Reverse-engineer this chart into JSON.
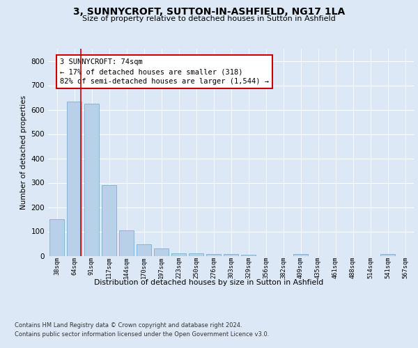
{
  "title": "3, SUNNYCROFT, SUTTON-IN-ASHFIELD, NG17 1LA",
  "subtitle": "Size of property relative to detached houses in Sutton in Ashfield",
  "xlabel": "Distribution of detached houses by size in Sutton in Ashfield",
  "ylabel": "Number of detached properties",
  "categories": [
    "38sqm",
    "64sqm",
    "91sqm",
    "117sqm",
    "144sqm",
    "170sqm",
    "197sqm",
    "223sqm",
    "250sqm",
    "276sqm",
    "303sqm",
    "329sqm",
    "356sqm",
    "382sqm",
    "409sqm",
    "435sqm",
    "461sqm",
    "488sqm",
    "514sqm",
    "541sqm",
    "567sqm"
  ],
  "values": [
    150,
    632,
    625,
    290,
    103,
    47,
    30,
    11,
    9,
    7,
    7,
    5,
    0,
    0,
    7,
    0,
    0,
    0,
    0,
    7,
    0
  ],
  "bar_color": "#b8d0e8",
  "bar_edge_color": "#7aaed4",
  "marker_line_color": "#cc0000",
  "annotation_text": "3 SUNNYCROFT: 74sqm\n← 17% of detached houses are smaller (318)\n82% of semi-detached houses are larger (1,544) →",
  "annotation_box_color": "#ffffff",
  "annotation_box_edge_color": "#cc0000",
  "ylim": [
    0,
    850
  ],
  "yticks": [
    0,
    100,
    200,
    300,
    400,
    500,
    600,
    700,
    800
  ],
  "bg_color": "#dce8f5",
  "plot_bg_color": "#dce8f5",
  "footer_line1": "Contains HM Land Registry data © Crown copyright and database right 2024.",
  "footer_line2": "Contains public sector information licensed under the Open Government Licence v3.0."
}
